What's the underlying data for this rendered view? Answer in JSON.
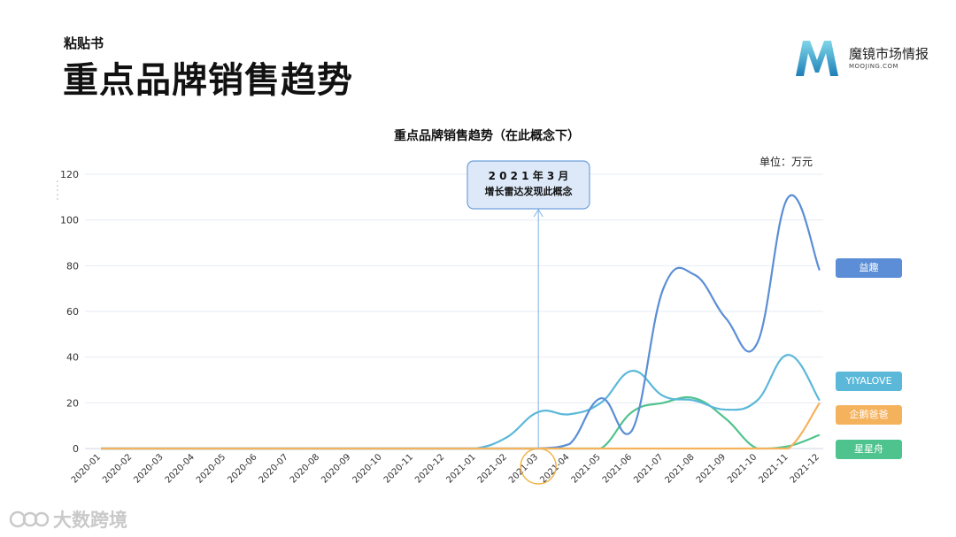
{
  "header": {
    "subtitle": "粘贴书",
    "title": "重点品牌销售趋势"
  },
  "logo": {
    "name": "魔镜市场情报",
    "sub": "MOOJING.COM"
  },
  "watermark": {
    "text": "大数跨境"
  },
  "annotation": {
    "line1": "2 0 2 1 年 3 月",
    "line2": "增长雷达发现此概念"
  },
  "chart_data": {
    "type": "line",
    "title": "重点品牌销售趋势（在此概念下）",
    "unit_label": "单位：万元",
    "categories": [
      "2020-01",
      "2020-02",
      "2020-03",
      "2020-04",
      "2020-05",
      "2020-06",
      "2020-07",
      "2020-08",
      "2020-09",
      "2020-10",
      "2020-11",
      "2020-12",
      "2021-01",
      "2021-02",
      "2021-03",
      "2021-04",
      "2021-05",
      "2021-06",
      "2021-07",
      "2021-08",
      "2021-09",
      "2021-10",
      "2021-11",
      "2021-12"
    ],
    "yticks": [
      0,
      20,
      40,
      60,
      80,
      100,
      120
    ],
    "ylim": [
      0,
      120
    ],
    "grid": true,
    "highlight_category": "2021-03",
    "series": [
      {
        "name": "益趣",
        "color": "#5b8ed6",
        "values": [
          0,
          0,
          0,
          0,
          0,
          0,
          0,
          0,
          0,
          0,
          0,
          0,
          0,
          0,
          0,
          2,
          22,
          8,
          70,
          76,
          57,
          46,
          110,
          78
        ]
      },
      {
        "name": "YIYALOVE",
        "color": "#5bb8d9",
        "values": [
          0,
          0,
          0,
          0,
          0,
          0,
          0,
          0,
          0,
          0,
          0,
          0,
          0,
          5,
          16,
          15,
          20,
          34,
          23,
          21,
          17,
          21,
          41,
          21
        ]
      },
      {
        "name": "企鹅爸爸",
        "color": "#f5b25d",
        "values": [
          0,
          0,
          0,
          0,
          0,
          0,
          0,
          0,
          0,
          0,
          0,
          0,
          0,
          0,
          0,
          0,
          0,
          0,
          0,
          0,
          0,
          0,
          0,
          20
        ]
      },
      {
        "name": "星星舟",
        "color": "#4fc38e",
        "values": [
          0,
          0,
          0,
          0,
          0,
          0,
          0,
          0,
          0,
          0,
          0,
          0,
          0,
          0,
          0,
          0,
          0,
          16,
          20,
          22,
          13,
          0,
          1,
          6
        ]
      }
    ],
    "legend": "right"
  }
}
